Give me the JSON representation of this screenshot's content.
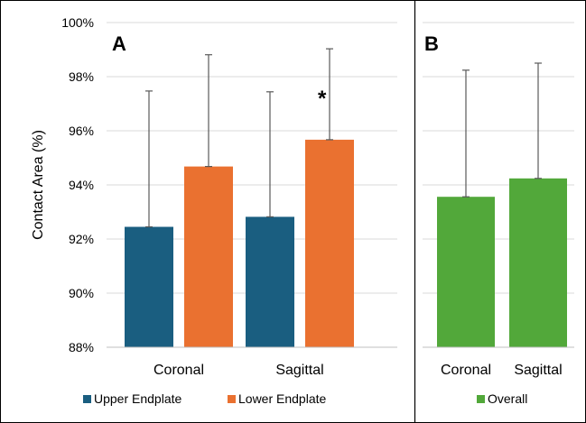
{
  "chart_data": [
    {
      "panel_label": "A",
      "type": "bar",
      "categories": [
        "Coronal",
        "Sagittal"
      ],
      "series": [
        {
          "name": "Upper Endplate",
          "color": "#1a5e80",
          "values": [
            92.45,
            92.82
          ],
          "error_plus": [
            5.02,
            4.62
          ]
        },
        {
          "name": "Lower Endplate",
          "color": "#ea7130",
          "values": [
            94.68,
            95.67
          ],
          "error_plus": [
            4.13,
            3.36
          ]
        }
      ],
      "ylabel": "Contact Area (%)",
      "ylim": [
        88,
        100
      ],
      "yticks": [
        88,
        90,
        92,
        94,
        96,
        98,
        100
      ],
      "ytick_labels": [
        "88%",
        "90%",
        "92%",
        "94%",
        "96%",
        "98%",
        "100%"
      ],
      "annotation": "*",
      "grid": true,
      "legend": "bottom"
    },
    {
      "panel_label": "B",
      "type": "bar",
      "categories": [
        "Coronal",
        "Sagittal"
      ],
      "series": [
        {
          "name": "Overall",
          "color": "#52a83a",
          "values": [
            93.56,
            94.24
          ],
          "error_plus": [
            4.68,
            4.26
          ]
        }
      ],
      "ylim": [
        88,
        100
      ],
      "grid": true,
      "legend": "bottom"
    }
  ]
}
